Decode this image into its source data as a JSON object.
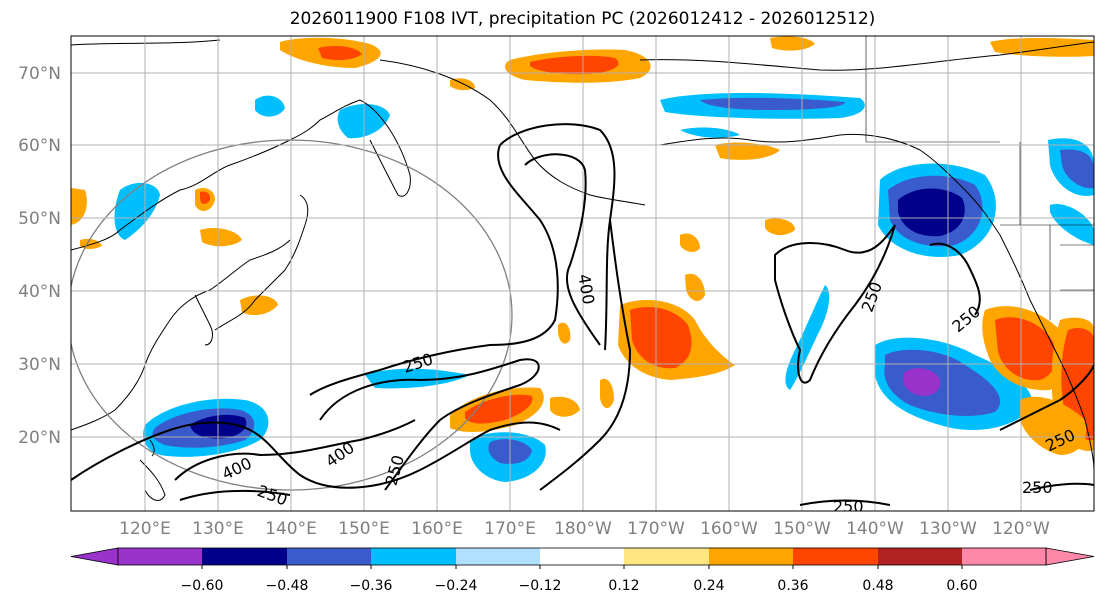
{
  "title": "2026011900 F108 IVT, precipitation PC (2026012412 - 2026012512)",
  "map": {
    "lat_labels": [
      "70°N",
      "60°N",
      "50°N",
      "40°N",
      "30°N",
      "20°N"
    ],
    "lon_labels": [
      "120°E",
      "130°E",
      "140°E",
      "150°E",
      "160°E",
      "170°E",
      "180°W",
      "170°W",
      "160°W",
      "150°W",
      "140°W",
      "130°W",
      "120°W"
    ],
    "ivt_contour_labels": [
      "400",
      "250",
      "400",
      "250",
      "250",
      "250",
      "400",
      "250",
      "250",
      "250",
      "250"
    ],
    "contour_color": "#000000",
    "coastline_color": "#000000",
    "grid_color": "#b0b0b0",
    "circle_color": "#808080"
  },
  "colorbar": {
    "colors": [
      "#9933cc",
      "#00008b",
      "#3a5bcc",
      "#00bfff",
      "#b0e0ff",
      "#ffffff",
      "#ffe680",
      "#ffa500",
      "#ff4500",
      "#b22222",
      "#ff88aa"
    ],
    "tick_labels": [
      "−0.60",
      "−0.48",
      "−0.36",
      "−0.24",
      "−0.12",
      "0.12",
      "0.24",
      "0.36",
      "0.48",
      "0.60"
    ]
  }
}
